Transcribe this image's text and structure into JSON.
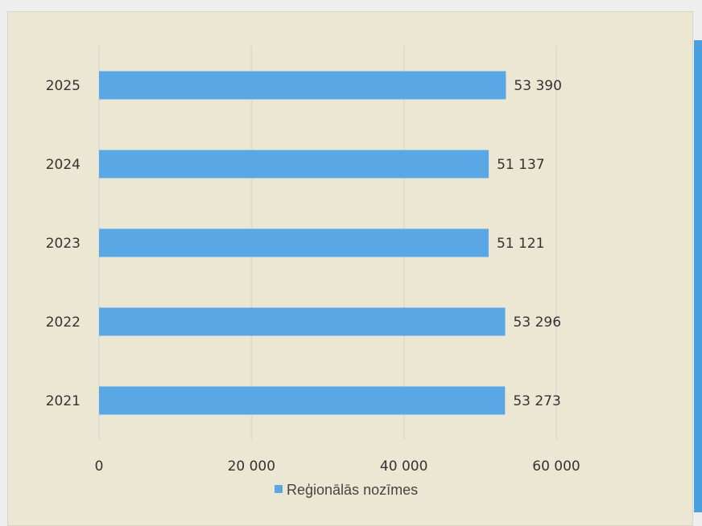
{
  "chart_data": {
    "type": "bar",
    "orientation": "horizontal",
    "categories": [
      "2025",
      "2024",
      "2023",
      "2022",
      "2021"
    ],
    "series": [
      {
        "name": "Reģionālās nozīmes",
        "values": [
          53390,
          51137,
          51121,
          53296,
          53273
        ],
        "labels": [
          "53 390",
          "51 137",
          "51 121",
          "53 296",
          "53 273"
        ],
        "color": "#5aa7e6"
      }
    ],
    "xlim": [
      0,
      60000
    ],
    "xticks": [
      0,
      20000,
      40000,
      60000
    ],
    "xtick_labels": [
      "0",
      "20 000",
      "40 000",
      "60 000"
    ],
    "grid": "vertical",
    "legend_position": "bottom",
    "title": "",
    "xlabel": "",
    "ylabel": ""
  },
  "colors": {
    "panel_background": "#ece7d3",
    "gridline": "#d9d9d6",
    "accent_strip": "#4a9fe0"
  }
}
